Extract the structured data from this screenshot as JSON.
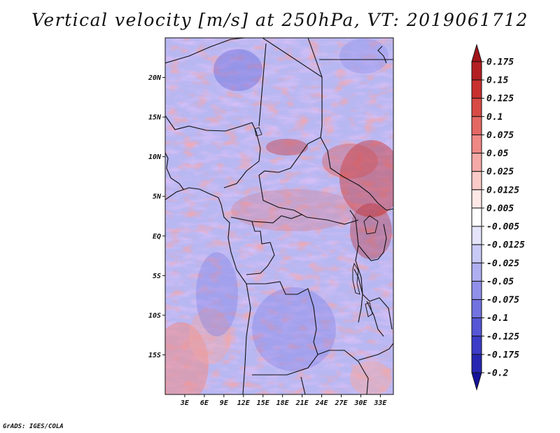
{
  "title": "Vertical velocity [m/s] at 250hPa, VT: 2019061712",
  "credit": "GrADS: IGES/COLA",
  "map": {
    "lon_range": [
      0,
      35
    ],
    "lat_range": [
      -20,
      25
    ],
    "lon_ticks": [
      {
        "value": 3,
        "label": "3E"
      },
      {
        "value": 6,
        "label": "6E"
      },
      {
        "value": 9,
        "label": "9E"
      },
      {
        "value": 12,
        "label": "12E"
      },
      {
        "value": 15,
        "label": "15E"
      },
      {
        "value": 18,
        "label": "18E"
      },
      {
        "value": 21,
        "label": "21E"
      },
      {
        "value": 24,
        "label": "24E"
      },
      {
        "value": 27,
        "label": "27E"
      },
      {
        "value": 30,
        "label": "30E"
      },
      {
        "value": 33,
        "label": "33E"
      }
    ],
    "lat_ticks": [
      {
        "value": 20,
        "label": "20N"
      },
      {
        "value": 15,
        "label": "15N"
      },
      {
        "value": 10,
        "label": "10N"
      },
      {
        "value": 5,
        "label": "5N"
      },
      {
        "value": 0,
        "label": "EQ"
      },
      {
        "value": -5,
        "label": "5S"
      },
      {
        "value": -10,
        "label": "10S"
      },
      {
        "value": -15,
        "label": "15S"
      }
    ]
  },
  "colorbar": {
    "labels": [
      "0.175",
      "0.15",
      "0.125",
      "0.1",
      "0.075",
      "0.05",
      "0.025",
      "0.0125",
      "0.005",
      "-0.005",
      "-0.0125",
      "-0.025",
      "-0.05",
      "-0.075",
      "-0.1",
      "-0.125",
      "-0.175",
      "-0.2"
    ],
    "colors": [
      "#a01418",
      "#b31f22",
      "#c7302e",
      "#d84a45",
      "#e46864",
      "#ee8884",
      "#f4a9a6",
      "#f9cac8",
      "#fde8e7",
      "#ffffff",
      "#e4e4fb",
      "#c9c9f6",
      "#aeaef1",
      "#9090ea",
      "#7272e0",
      "#5656d6",
      "#3c3cc8",
      "#2626b2",
      "#14129a"
    ]
  }
}
